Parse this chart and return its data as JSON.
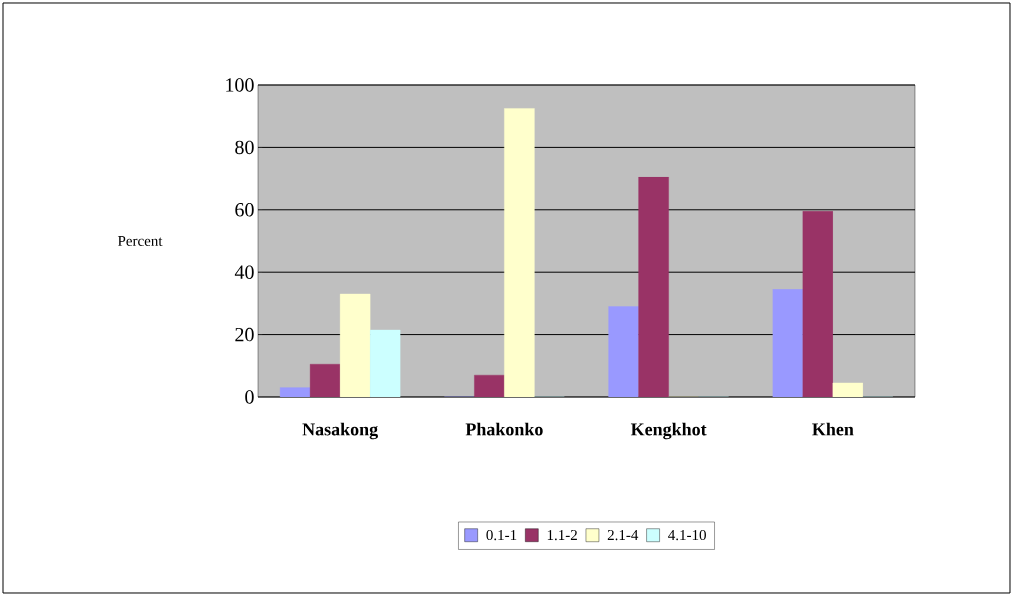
{
  "chart_data": {
    "type": "bar",
    "ylabel": "Percent",
    "categories": [
      "Nasakong",
      "Phakonko",
      "Kengkhot",
      "Khen"
    ],
    "series": [
      {
        "name": "0.1-1",
        "color": "#9999ff",
        "values": [
          3,
          0,
          29,
          34.5
        ]
      },
      {
        "name": "1.1-2",
        "color": "#993366",
        "values": [
          10.5,
          7,
          70.5,
          59.5
        ]
      },
      {
        "name": "2.1-4",
        "color": "#ffffcc",
        "values": [
          33,
          92.5,
          0,
          4.5
        ]
      },
      {
        "name": "4.1-10",
        "color": "#ccffff",
        "values": [
          21.5,
          0,
          0,
          0
        ]
      }
    ],
    "ylim": [
      0,
      100
    ],
    "yticks": [
      0,
      20,
      40,
      60,
      80,
      100
    ],
    "grid": "y",
    "legend": "bottom"
  }
}
